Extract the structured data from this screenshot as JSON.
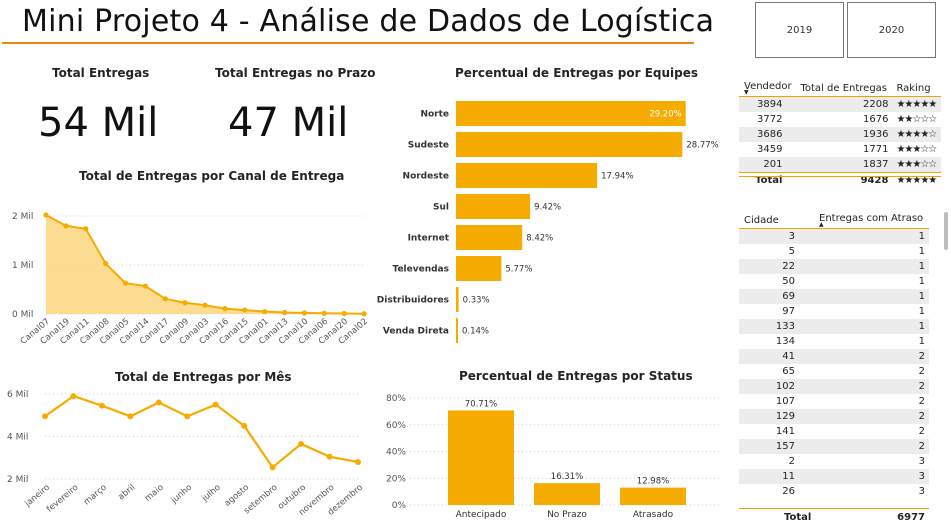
{
  "header": {
    "title": "Mini Projeto 4 - Análise de Dados de Logística",
    "year_buttons": [
      "2019",
      "2020"
    ]
  },
  "kpis": [
    {
      "label": "Total Entregas",
      "value": "54 Mil"
    },
    {
      "label": "Total Entregas no Prazo",
      "value": "47 Mil"
    }
  ],
  "colors": {
    "accent": "#f5ab00",
    "area_fill": "#fbd67d",
    "title_line": "#e8890c"
  },
  "chart_data": [
    {
      "id": "canal",
      "type": "area",
      "title": "Total de Entregas por Canal de Entrega",
      "categories": [
        "Canal07",
        "Canal19",
        "Canal11",
        "Canal08",
        "Canal05",
        "Canal14",
        "Canal17",
        "Canal09",
        "Canal03",
        "Canal16",
        "Canal15",
        "Canal01",
        "Canal13",
        "Canal10",
        "Canal06",
        "Canal20",
        "Canal02"
      ],
      "values": [
        2020,
        1800,
        1740,
        1030,
        630,
        570,
        310,
        230,
        180,
        110,
        80,
        50,
        30,
        20,
        15,
        10,
        5
      ],
      "y_ticks": [
        "0 Mil",
        "1 Mil",
        "2 Mil"
      ],
      "ylim": [
        0,
        2000
      ],
      "grid": true
    },
    {
      "id": "mes",
      "type": "line",
      "title": "Total de Entregas por Mês",
      "categories": [
        "janeiro",
        "fevereiro",
        "março",
        "abril",
        "maio",
        "junho",
        "julho",
        "agosto",
        "setembro",
        "outubro",
        "novembro",
        "dezembro"
      ],
      "values": [
        4950,
        5900,
        5450,
        4950,
        5600,
        4950,
        5500,
        4500,
        2550,
        3650,
        3050,
        2800
      ],
      "y_ticks": [
        "2 Mil",
        "4 Mil",
        "6 Mil"
      ],
      "ylim": [
        2000,
        6000
      ],
      "grid": true
    },
    {
      "id": "equipes",
      "type": "bar",
      "orientation": "horizontal",
      "title": "Percentual de Entregas por Equipes",
      "categories": [
        "Norte",
        "Sudeste",
        "Nordeste",
        "Sul",
        "Internet",
        "Televendas",
        "Distribuidores",
        "Venda Direta"
      ],
      "values": [
        29.2,
        28.77,
        17.94,
        9.42,
        8.42,
        5.77,
        0.33,
        0.14
      ],
      "labels": [
        "29.20%",
        "28.77%",
        "17.94%",
        "9.42%",
        "8.42%",
        "5.77%",
        "0.33%",
        "0.14%"
      ]
    },
    {
      "id": "status",
      "type": "bar",
      "title": "Percentual de Entregas por Status",
      "categories": [
        "Antecipado",
        "No Prazo",
        "Atrasado"
      ],
      "values": [
        70.71,
        16.31,
        12.98
      ],
      "labels": [
        "70.71%",
        "16.31%",
        "12.98%"
      ],
      "y_ticks": [
        "0%",
        "20%",
        "40%",
        "60%",
        "80%"
      ],
      "ylim": [
        0,
        80
      ],
      "grid": true
    }
  ],
  "vendedor_table": {
    "headers": [
      "Vendedor",
      "Total de Entregas",
      "Raking"
    ],
    "rows": [
      {
        "vendedor": "3894",
        "total": "2208",
        "stars": "★★★★★"
      },
      {
        "vendedor": "3772",
        "total": "1676",
        "stars": "★★☆☆☆"
      },
      {
        "vendedor": "3686",
        "total": "1936",
        "stars": "★★★★☆"
      },
      {
        "vendedor": "3459",
        "total": "1771",
        "stars": "★★★☆☆"
      },
      {
        "vendedor": "201",
        "total": "1837",
        "stars": "★★★☆☆"
      }
    ],
    "total_label": "Total",
    "total_value": "9428",
    "total_stars": "★★★★★"
  },
  "cidade_table": {
    "headers": [
      "Cidade",
      "Entregas com Atraso"
    ],
    "rows": [
      [
        "3",
        "1"
      ],
      [
        "5",
        "1"
      ],
      [
        "22",
        "1"
      ],
      [
        "50",
        "1"
      ],
      [
        "69",
        "1"
      ],
      [
        "97",
        "1"
      ],
      [
        "133",
        "1"
      ],
      [
        "134",
        "1"
      ],
      [
        "41",
        "2"
      ],
      [
        "65",
        "2"
      ],
      [
        "102",
        "2"
      ],
      [
        "107",
        "2"
      ],
      [
        "129",
        "2"
      ],
      [
        "141",
        "2"
      ],
      [
        "157",
        "2"
      ],
      [
        "2",
        "3"
      ],
      [
        "11",
        "3"
      ],
      [
        "26",
        "3"
      ]
    ],
    "total_label": "Total",
    "total_value": "6977"
  }
}
